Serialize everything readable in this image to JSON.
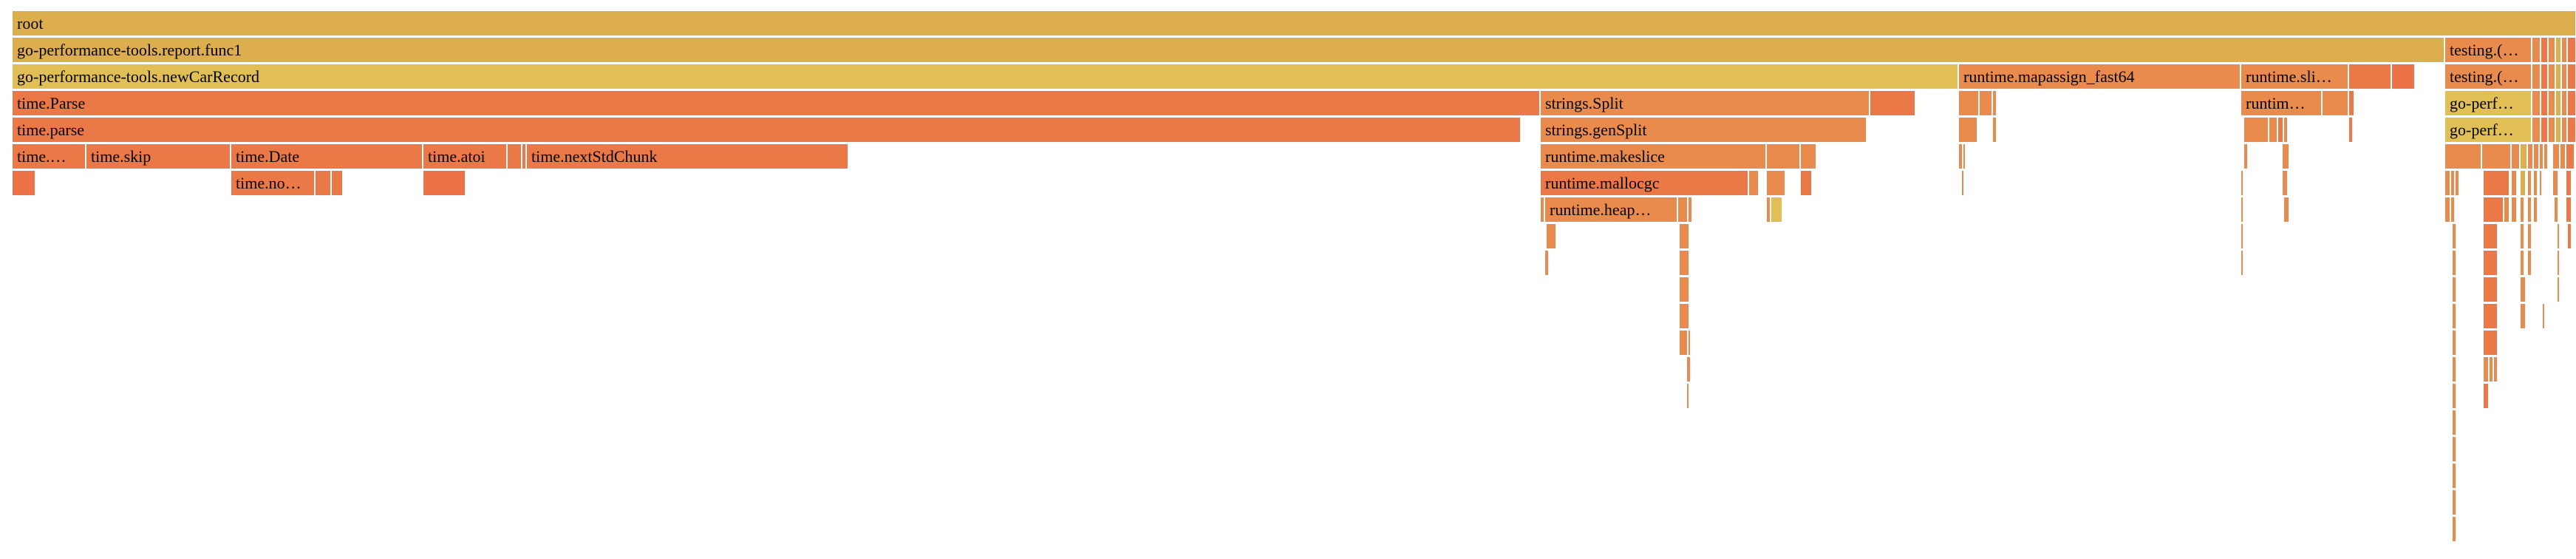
{
  "flame": {
    "colors": {
      "gold": "#ddae4d",
      "yellow": "#e1bf55",
      "orange": "#e98b4d",
      "dark": "#eb7947",
      "red": "#ec7247"
    },
    "frames": [
      {
        "label": "root",
        "c": "gold"
      },
      {
        "label": "go-performance-tools.report.func1",
        "c": "gold"
      },
      {
        "label": "testing.(…",
        "c": "orange"
      },
      {
        "label": "go-performance-tools.newCarRecord",
        "c": "yellow"
      },
      {
        "label": "runtime.mapassign_fast64",
        "c": "orange"
      },
      {
        "label": "runtime.sli…",
        "c": "orange"
      },
      {
        "label": "testing.(…",
        "c": "orange"
      },
      {
        "label": "time.Parse",
        "c": "dark"
      },
      {
        "label": "strings.Split",
        "c": "orange"
      },
      {
        "label": "runtim…",
        "c": "orange"
      },
      {
        "label": "go-perf…",
        "c": "yellow"
      },
      {
        "label": "time.parse",
        "c": "dark"
      },
      {
        "label": "strings.genSplit",
        "c": "orange"
      },
      {
        "label": "go-perf…",
        "c": "yellow"
      },
      {
        "label": "time.…",
        "c": "dark"
      },
      {
        "label": "time.skip",
        "c": "dark"
      },
      {
        "label": "time.Date",
        "c": "dark"
      },
      {
        "label": "time.atoi",
        "c": "dark"
      },
      {
        "label": "time.nextStdChunk",
        "c": "dark"
      },
      {
        "label": "runtime.makeslice",
        "c": "orange"
      },
      {
        "label": "time.no…",
        "c": "dark"
      },
      {
        "label": "runtime.mallocgc",
        "c": "dark"
      },
      {
        "label": "runtime.heap…",
        "c": "orange"
      }
    ]
  }
}
